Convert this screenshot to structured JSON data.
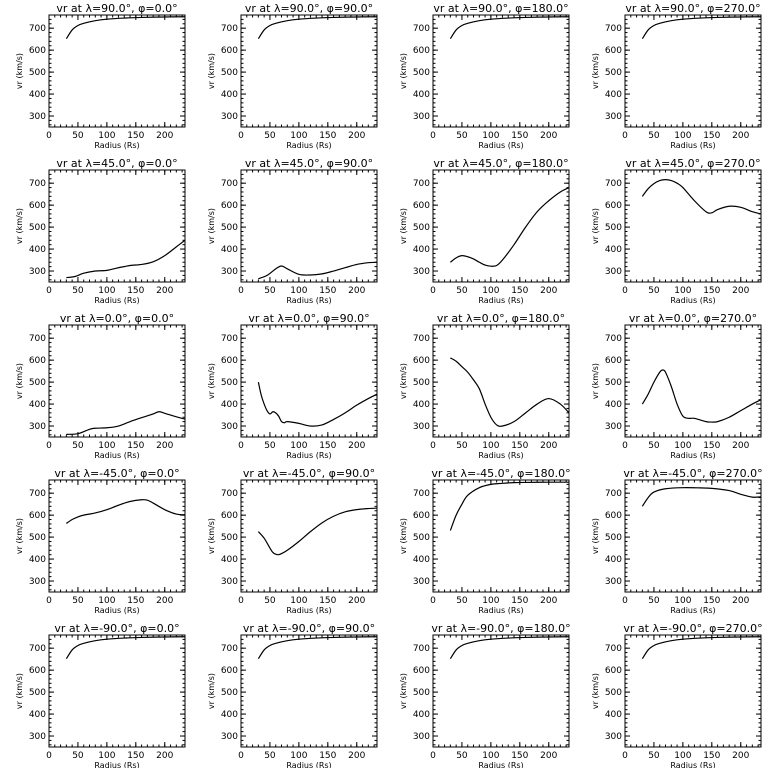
{
  "xlabel": "Radius (Rs)",
  "ylabel": "vr (km/s)",
  "xlim": [
    0,
    235
  ],
  "ylim": [
    250,
    760
  ],
  "x_ticks": [
    0,
    50,
    100,
    150,
    200
  ],
  "y_ticks": [
    300,
    400,
    500,
    600,
    700
  ],
  "x_minor_step": 10,
  "y_minor_step": 20,
  "colors": {
    "line": "#000000",
    "background": "#ffffff"
  },
  "chart_data": [
    {
      "type": "line",
      "title": "vr at λ=90.0°, φ=0.0°",
      "x": [
        30,
        40,
        50,
        60,
        80,
        100,
        130,
        160,
        200,
        235
      ],
      "y": [
        652,
        692,
        712,
        722,
        734,
        741,
        746,
        749,
        751,
        752
      ]
    },
    {
      "type": "line",
      "title": "vr at λ=90.0°, φ=90.0°",
      "x": [
        30,
        40,
        50,
        60,
        80,
        100,
        130,
        160,
        200,
        235
      ],
      "y": [
        652,
        692,
        712,
        722,
        734,
        741,
        746,
        749,
        751,
        752
      ]
    },
    {
      "type": "line",
      "title": "vr at λ=90.0°, φ=180.0°",
      "x": [
        30,
        40,
        50,
        60,
        80,
        100,
        130,
        160,
        200,
        235
      ],
      "y": [
        652,
        692,
        712,
        722,
        734,
        741,
        746,
        749,
        751,
        752
      ]
    },
    {
      "type": "line",
      "title": "vr at λ=90.0°, φ=270.0°",
      "x": [
        30,
        40,
        50,
        60,
        80,
        100,
        130,
        160,
        200,
        235
      ],
      "y": [
        652,
        692,
        712,
        722,
        734,
        741,
        746,
        749,
        751,
        752
      ]
    },
    {
      "type": "line",
      "title": "vr at λ=45.0°, φ=0.0°",
      "x": [
        30,
        45,
        60,
        80,
        100,
        120,
        140,
        160,
        180,
        200,
        220,
        235
      ],
      "y": [
        270,
        275,
        290,
        300,
        303,
        315,
        325,
        330,
        342,
        370,
        410,
        440
      ]
    },
    {
      "type": "line",
      "title": "vr at λ=45.0°, φ=90.0°",
      "x": [
        30,
        45,
        60,
        70,
        80,
        100,
        120,
        140,
        160,
        180,
        200,
        220,
        235
      ],
      "y": [
        265,
        280,
        310,
        323,
        310,
        285,
        282,
        287,
        300,
        315,
        330,
        338,
        340
      ]
    },
    {
      "type": "line",
      "title": "vr at λ=45.0°, φ=180.0°",
      "x": [
        30,
        40,
        50,
        60,
        70,
        80,
        90,
        100,
        110,
        120,
        140,
        160,
        180,
        200,
        220,
        235
      ],
      "y": [
        340,
        360,
        370,
        365,
        355,
        340,
        327,
        322,
        325,
        350,
        420,
        500,
        570,
        620,
        660,
        680
      ]
    },
    {
      "type": "line",
      "title": "vr at λ=45.0°, φ=270.0°",
      "x": [
        30,
        40,
        50,
        60,
        70,
        80,
        90,
        100,
        120,
        140,
        150,
        160,
        180,
        200,
        220,
        235
      ],
      "y": [
        640,
        675,
        698,
        712,
        716,
        712,
        700,
        680,
        620,
        570,
        565,
        580,
        595,
        590,
        570,
        560
      ]
    },
    {
      "type": "line",
      "title": "vr at λ=0.0°, φ=0.0°",
      "x": [
        30,
        50,
        70,
        80,
        100,
        120,
        140,
        160,
        180,
        190,
        200,
        220,
        235
      ],
      "y": [
        262,
        265,
        285,
        290,
        292,
        300,
        320,
        338,
        355,
        365,
        358,
        342,
        332
      ]
    },
    {
      "type": "line",
      "title": "vr at λ=0.0°, φ=90.0°",
      "x": [
        30,
        35,
        40,
        45,
        50,
        55,
        60,
        65,
        70,
        75,
        80,
        100,
        120,
        140,
        160,
        180,
        200,
        220,
        235
      ],
      "y": [
        500,
        440,
        400,
        370,
        355,
        365,
        360,
        345,
        320,
        315,
        320,
        312,
        300,
        305,
        330,
        360,
        395,
        425,
        445
      ]
    },
    {
      "type": "line",
      "title": "vr at λ=0.0°, φ=180.0°",
      "x": [
        30,
        40,
        50,
        60,
        70,
        80,
        90,
        100,
        110,
        120,
        140,
        160,
        180,
        200,
        220,
        235
      ],
      "y": [
        610,
        595,
        570,
        545,
        510,
        470,
        400,
        340,
        305,
        300,
        320,
        360,
        400,
        425,
        400,
        360
      ]
    },
    {
      "type": "line",
      "title": "vr at λ=0.0°, φ=270.0°",
      "x": [
        30,
        40,
        50,
        60,
        65,
        70,
        80,
        90,
        100,
        110,
        120,
        140,
        150,
        160,
        180,
        200,
        220,
        235
      ],
      "y": [
        400,
        445,
        500,
        545,
        555,
        545,
        480,
        400,
        345,
        335,
        335,
        320,
        318,
        320,
        340,
        370,
        400,
        420
      ]
    },
    {
      "type": "line",
      "title": "vr at λ=-45.0°, φ=0.0°",
      "x": [
        30,
        40,
        50,
        60,
        80,
        100,
        120,
        140,
        160,
        170,
        180,
        200,
        220,
        235
      ],
      "y": [
        562,
        580,
        592,
        600,
        610,
        625,
        645,
        662,
        670,
        668,
        655,
        625,
        605,
        602
      ]
    },
    {
      "type": "line",
      "title": "vr at λ=-45.0°, φ=90.0°",
      "x": [
        30,
        40,
        50,
        55,
        60,
        65,
        70,
        80,
        100,
        120,
        140,
        160,
        180,
        200,
        220,
        235
      ],
      "y": [
        525,
        495,
        450,
        430,
        422,
        420,
        425,
        440,
        480,
        525,
        565,
        595,
        615,
        625,
        630,
        632
      ]
    },
    {
      "type": "line",
      "title": "vr at λ=-45.0°, φ=180.0°",
      "x": [
        30,
        40,
        50,
        60,
        80,
        100,
        120,
        140,
        160,
        200,
        235
      ],
      "y": [
        530,
        600,
        650,
        690,
        725,
        740,
        745,
        748,
        749,
        750,
        750
      ]
    },
    {
      "type": "line",
      "title": "vr at λ=-45.0°, φ=270.0°",
      "x": [
        30,
        40,
        50,
        70,
        100,
        130,
        150,
        180,
        200,
        220,
        235
      ],
      "y": [
        640,
        680,
        705,
        720,
        725,
        724,
        722,
        712,
        695,
        682,
        683
      ]
    },
    {
      "type": "line",
      "title": "vr at λ=-90.0°, φ=0.0°",
      "x": [
        30,
        40,
        50,
        60,
        80,
        100,
        130,
        160,
        200,
        235
      ],
      "y": [
        652,
        692,
        712,
        722,
        734,
        741,
        746,
        749,
        751,
        752
      ]
    },
    {
      "type": "line",
      "title": "vr at λ=-90.0°, φ=90.0°",
      "x": [
        30,
        40,
        50,
        60,
        80,
        100,
        130,
        160,
        200,
        235
      ],
      "y": [
        652,
        692,
        712,
        722,
        734,
        741,
        746,
        749,
        751,
        752
      ]
    },
    {
      "type": "line",
      "title": "vr at λ=-90.0°, φ=180.0°",
      "x": [
        30,
        40,
        50,
        60,
        80,
        100,
        130,
        160,
        200,
        235
      ],
      "y": [
        652,
        692,
        712,
        722,
        734,
        741,
        746,
        749,
        751,
        752
      ]
    },
    {
      "type": "line",
      "title": "vr at λ=-90.0°, φ=270.0°",
      "x": [
        30,
        40,
        50,
        60,
        80,
        100,
        130,
        160,
        200,
        235
      ],
      "y": [
        652,
        692,
        712,
        722,
        734,
        741,
        746,
        749,
        751,
        752
      ]
    }
  ]
}
